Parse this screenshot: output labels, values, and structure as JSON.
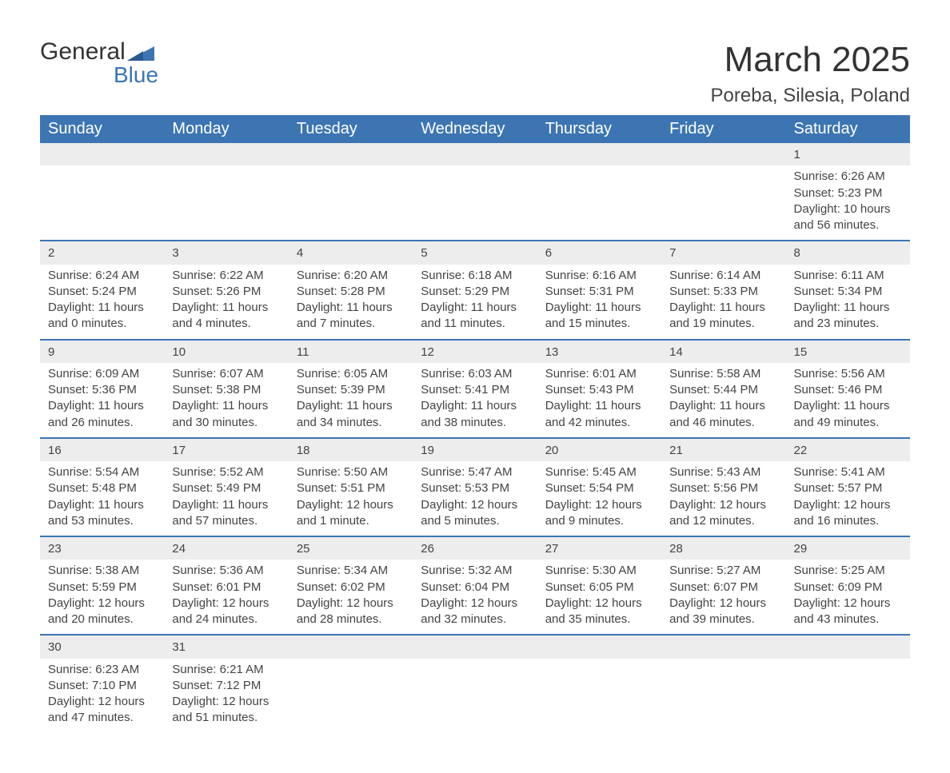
{
  "brand": {
    "line1": "General",
    "line2": "Blue"
  },
  "title": "March 2025",
  "subtitle": "Poreba, Silesia, Poland",
  "colors": {
    "header_bg": "#3d75b3",
    "header_text": "#ffffff",
    "daynum_bg": "#ededed",
    "row_border": "#3d75b3",
    "body_text": "#444444",
    "brand_blue": "#3d75b3"
  },
  "typography": {
    "title_fontsize": 44,
    "subtitle_fontsize": 24,
    "th_fontsize": 20,
    "daynum_fontsize": 18,
    "cell_fontsize": 15
  },
  "weekdays": [
    "Sunday",
    "Monday",
    "Tuesday",
    "Wednesday",
    "Thursday",
    "Friday",
    "Saturday"
  ],
  "weeks": [
    [
      null,
      null,
      null,
      null,
      null,
      null,
      {
        "n": "1",
        "sr": "Sunrise: 6:26 AM",
        "ss": "Sunset: 5:23 PM",
        "d1": "Daylight: 10 hours",
        "d2": "and 56 minutes."
      }
    ],
    [
      {
        "n": "2",
        "sr": "Sunrise: 6:24 AM",
        "ss": "Sunset: 5:24 PM",
        "d1": "Daylight: 11 hours",
        "d2": "and 0 minutes."
      },
      {
        "n": "3",
        "sr": "Sunrise: 6:22 AM",
        "ss": "Sunset: 5:26 PM",
        "d1": "Daylight: 11 hours",
        "d2": "and 4 minutes."
      },
      {
        "n": "4",
        "sr": "Sunrise: 6:20 AM",
        "ss": "Sunset: 5:28 PM",
        "d1": "Daylight: 11 hours",
        "d2": "and 7 minutes."
      },
      {
        "n": "5",
        "sr": "Sunrise: 6:18 AM",
        "ss": "Sunset: 5:29 PM",
        "d1": "Daylight: 11 hours",
        "d2": "and 11 minutes."
      },
      {
        "n": "6",
        "sr": "Sunrise: 6:16 AM",
        "ss": "Sunset: 5:31 PM",
        "d1": "Daylight: 11 hours",
        "d2": "and 15 minutes."
      },
      {
        "n": "7",
        "sr": "Sunrise: 6:14 AM",
        "ss": "Sunset: 5:33 PM",
        "d1": "Daylight: 11 hours",
        "d2": "and 19 minutes."
      },
      {
        "n": "8",
        "sr": "Sunrise: 6:11 AM",
        "ss": "Sunset: 5:34 PM",
        "d1": "Daylight: 11 hours",
        "d2": "and 23 minutes."
      }
    ],
    [
      {
        "n": "9",
        "sr": "Sunrise: 6:09 AM",
        "ss": "Sunset: 5:36 PM",
        "d1": "Daylight: 11 hours",
        "d2": "and 26 minutes."
      },
      {
        "n": "10",
        "sr": "Sunrise: 6:07 AM",
        "ss": "Sunset: 5:38 PM",
        "d1": "Daylight: 11 hours",
        "d2": "and 30 minutes."
      },
      {
        "n": "11",
        "sr": "Sunrise: 6:05 AM",
        "ss": "Sunset: 5:39 PM",
        "d1": "Daylight: 11 hours",
        "d2": "and 34 minutes."
      },
      {
        "n": "12",
        "sr": "Sunrise: 6:03 AM",
        "ss": "Sunset: 5:41 PM",
        "d1": "Daylight: 11 hours",
        "d2": "and 38 minutes."
      },
      {
        "n": "13",
        "sr": "Sunrise: 6:01 AM",
        "ss": "Sunset: 5:43 PM",
        "d1": "Daylight: 11 hours",
        "d2": "and 42 minutes."
      },
      {
        "n": "14",
        "sr": "Sunrise: 5:58 AM",
        "ss": "Sunset: 5:44 PM",
        "d1": "Daylight: 11 hours",
        "d2": "and 46 minutes."
      },
      {
        "n": "15",
        "sr": "Sunrise: 5:56 AM",
        "ss": "Sunset: 5:46 PM",
        "d1": "Daylight: 11 hours",
        "d2": "and 49 minutes."
      }
    ],
    [
      {
        "n": "16",
        "sr": "Sunrise: 5:54 AM",
        "ss": "Sunset: 5:48 PM",
        "d1": "Daylight: 11 hours",
        "d2": "and 53 minutes."
      },
      {
        "n": "17",
        "sr": "Sunrise: 5:52 AM",
        "ss": "Sunset: 5:49 PM",
        "d1": "Daylight: 11 hours",
        "d2": "and 57 minutes."
      },
      {
        "n": "18",
        "sr": "Sunrise: 5:50 AM",
        "ss": "Sunset: 5:51 PM",
        "d1": "Daylight: 12 hours",
        "d2": "and 1 minute."
      },
      {
        "n": "19",
        "sr": "Sunrise: 5:47 AM",
        "ss": "Sunset: 5:53 PM",
        "d1": "Daylight: 12 hours",
        "d2": "and 5 minutes."
      },
      {
        "n": "20",
        "sr": "Sunrise: 5:45 AM",
        "ss": "Sunset: 5:54 PM",
        "d1": "Daylight: 12 hours",
        "d2": "and 9 minutes."
      },
      {
        "n": "21",
        "sr": "Sunrise: 5:43 AM",
        "ss": "Sunset: 5:56 PM",
        "d1": "Daylight: 12 hours",
        "d2": "and 12 minutes."
      },
      {
        "n": "22",
        "sr": "Sunrise: 5:41 AM",
        "ss": "Sunset: 5:57 PM",
        "d1": "Daylight: 12 hours",
        "d2": "and 16 minutes."
      }
    ],
    [
      {
        "n": "23",
        "sr": "Sunrise: 5:38 AM",
        "ss": "Sunset: 5:59 PM",
        "d1": "Daylight: 12 hours",
        "d2": "and 20 minutes."
      },
      {
        "n": "24",
        "sr": "Sunrise: 5:36 AM",
        "ss": "Sunset: 6:01 PM",
        "d1": "Daylight: 12 hours",
        "d2": "and 24 minutes."
      },
      {
        "n": "25",
        "sr": "Sunrise: 5:34 AM",
        "ss": "Sunset: 6:02 PM",
        "d1": "Daylight: 12 hours",
        "d2": "and 28 minutes."
      },
      {
        "n": "26",
        "sr": "Sunrise: 5:32 AM",
        "ss": "Sunset: 6:04 PM",
        "d1": "Daylight: 12 hours",
        "d2": "and 32 minutes."
      },
      {
        "n": "27",
        "sr": "Sunrise: 5:30 AM",
        "ss": "Sunset: 6:05 PM",
        "d1": "Daylight: 12 hours",
        "d2": "and 35 minutes."
      },
      {
        "n": "28",
        "sr": "Sunrise: 5:27 AM",
        "ss": "Sunset: 6:07 PM",
        "d1": "Daylight: 12 hours",
        "d2": "and 39 minutes."
      },
      {
        "n": "29",
        "sr": "Sunrise: 5:25 AM",
        "ss": "Sunset: 6:09 PM",
        "d1": "Daylight: 12 hours",
        "d2": "and 43 minutes."
      }
    ],
    [
      {
        "n": "30",
        "sr": "Sunrise: 6:23 AM",
        "ss": "Sunset: 7:10 PM",
        "d1": "Daylight: 12 hours",
        "d2": "and 47 minutes."
      },
      {
        "n": "31",
        "sr": "Sunrise: 6:21 AM",
        "ss": "Sunset: 7:12 PM",
        "d1": "Daylight: 12 hours",
        "d2": "and 51 minutes."
      },
      null,
      null,
      null,
      null,
      null
    ]
  ]
}
